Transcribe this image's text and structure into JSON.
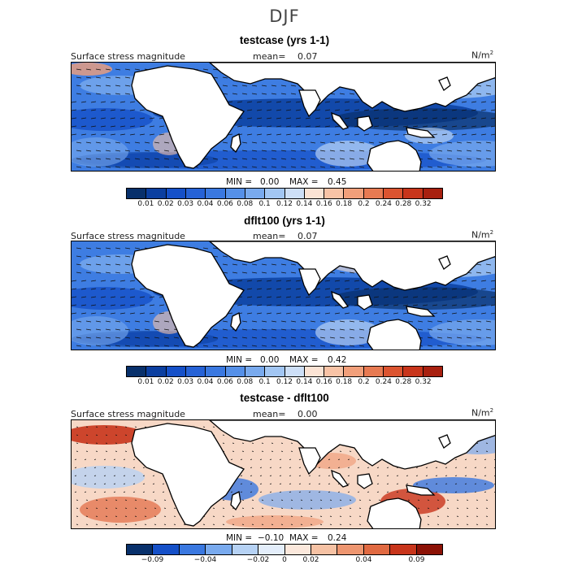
{
  "figure_title": "DJF",
  "panels": [
    {
      "title": "testcase (yrs 1-1)",
      "variable": "Surface stress magnitude",
      "mean_label": "mean=",
      "mean_value": "0.07",
      "units": "N/m",
      "units_exp": "2",
      "min_label": "MIN =",
      "min_value": "0.00",
      "max_label": "MAX =",
      "max_value": "0.45",
      "colorbar_ticks": [
        "0.01",
        "0.02",
        "0.03",
        "0.04",
        "0.06",
        "0.08",
        "0.1",
        "0.12",
        "0.14",
        "0.16",
        "0.18",
        "0.2",
        "0.24",
        "0.28",
        "0.32"
      ]
    },
    {
      "title": "dflt100 (yrs 1-1)",
      "variable": "Surface stress magnitude",
      "mean_label": "mean=",
      "mean_value": "0.07",
      "units": "N/m",
      "units_exp": "2",
      "min_label": "MIN =",
      "min_value": "0.00",
      "max_label": "MAX =",
      "max_value": "0.42",
      "colorbar_ticks": [
        "0.01",
        "0.02",
        "0.03",
        "0.04",
        "0.06",
        "0.08",
        "0.1",
        "0.12",
        "0.14",
        "0.16",
        "0.18",
        "0.2",
        "0.24",
        "0.28",
        "0.32"
      ]
    },
    {
      "title": "testcase - dflt100",
      "variable": "Surface stress magnitude",
      "mean_label": "mean=",
      "mean_value": "0.00",
      "units": "N/m",
      "units_exp": "2",
      "min_label": "MIN =",
      "min_value": "−0.10",
      "max_label": "MAX =",
      "max_value": "0.24",
      "colorbar_ticks": [
        "−0.09",
        "−0.04",
        "−0.02",
        "0",
        "0.02",
        "0.04",
        "0.09"
      ]
    }
  ],
  "colors": {
    "abs_scale": [
      "#08306b",
      "#0b3fa0",
      "#1550c8",
      "#2662d6",
      "#3a78e0",
      "#5590e8",
      "#79aaee",
      "#a2c6f3",
      "#cddff7",
      "#fbe3d4",
      "#f8c3a6",
      "#f19f7a",
      "#e77a52",
      "#db5430",
      "#c8351b",
      "#a8200f"
    ],
    "diff_scale": [
      "#08306b",
      "#1550c8",
      "#3a78e0",
      "#79aaee",
      "#b6d2f4",
      "#e4eefb",
      "#fbe8dc",
      "#f6c2a4",
      "#ee9670",
      "#e16a42",
      "#c8351b",
      "#8c1206"
    ]
  }
}
